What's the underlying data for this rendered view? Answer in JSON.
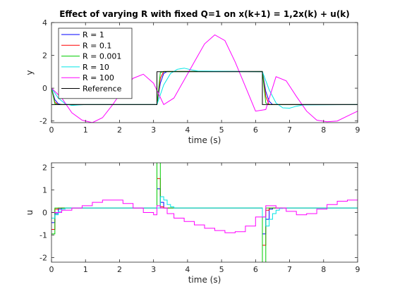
{
  "chart_data": [
    {
      "type": "line",
      "title": "Effect of varying R with fixed Q=1 on x(k+1) = 1,2x(k) + u(k)",
      "xlabel": "time (s)",
      "ylabel": "y",
      "xlim": [
        0,
        9
      ],
      "ylim": [
        -2.1,
        4
      ],
      "xticks": [
        "0",
        "1",
        "2",
        "3",
        "4",
        "5",
        "6",
        "7",
        "8",
        "9"
      ],
      "yticks": [
        "-2",
        "0",
        "2",
        "4"
      ],
      "legend_position": "top-left",
      "series": [
        {
          "name": "R = 1",
          "color": "#0000ff",
          "x": [
            0,
            0.1,
            0.2,
            0.3,
            3.1,
            3.2,
            3.3,
            3.4,
            6.2,
            6.3,
            6.4,
            6.5,
            9
          ],
          "y": [
            0,
            -0.7,
            -0.95,
            -1,
            -1,
            0.3,
            0.9,
            1.02,
            1.02,
            -0.2,
            -0.8,
            -1,
            -1
          ]
        },
        {
          "name": "R = 0.1",
          "color": "#ff0000",
          "x": [
            0,
            0.1,
            0.2,
            3.1,
            3.2,
            3.3,
            6.2,
            6.3,
            6.4,
            9
          ],
          "y": [
            0,
            -0.85,
            -1,
            -1,
            0.6,
            1.02,
            1.02,
            -0.5,
            -1,
            -1
          ]
        },
        {
          "name": "R = 0.001",
          "color": "#00cc00",
          "x": [
            0,
            0.1,
            0.2,
            3.1,
            3.2,
            3.3,
            6.2,
            6.3,
            6.4,
            9
          ],
          "y": [
            0,
            -0.95,
            -1,
            -1,
            0.95,
            1.02,
            1.02,
            -0.9,
            -1,
            -1
          ]
        },
        {
          "name": "R = 10",
          "color": "#00e5e5",
          "x": [
            0,
            0.2,
            0.4,
            0.6,
            0.8,
            1.0,
            3.1,
            3.3,
            3.5,
            3.7,
            3.9,
            4.1,
            4.3,
            6.2,
            6.4,
            6.6,
            6.8,
            7.0,
            7.2,
            7.4,
            9
          ],
          "y": [
            0,
            -0.6,
            -0.95,
            -1.05,
            -1.02,
            -1,
            -1,
            0.2,
            0.9,
            1.15,
            1.22,
            1.12,
            1.05,
            1.0,
            -0.1,
            -0.9,
            -1.2,
            -1.22,
            -1.1,
            -1.02,
            -1
          ]
        },
        {
          "name": "R = 100",
          "color": "#ff00ff",
          "x": [
            0,
            0.3,
            0.6,
            0.9,
            1.2,
            1.5,
            1.8,
            2.1,
            2.4,
            2.7,
            3.0,
            3.3,
            3.6,
            3.9,
            4.2,
            4.5,
            4.8,
            5.1,
            5.4,
            5.7,
            6.0,
            6.3,
            6.6,
            6.9,
            7.2,
            7.5,
            7.8,
            8.1,
            8.4,
            8.7,
            9.0
          ],
          "y": [
            0,
            -0.6,
            -1.5,
            -1.95,
            -2.1,
            -1.8,
            -1.0,
            -0.1,
            0.6,
            0.85,
            0.3,
            -1.0,
            -0.6,
            0.5,
            1.6,
            2.7,
            3.25,
            2.9,
            1.6,
            0.1,
            -1.4,
            -1.3,
            0.7,
            0.45,
            -0.5,
            -1.4,
            -1.95,
            -2.05,
            -2.0,
            -1.7,
            -1.4
          ]
        },
        {
          "name": "Reference",
          "color": "#000000",
          "x": [
            0,
            3.1,
            3.1,
            6.2,
            6.2,
            9
          ],
          "y": [
            -1,
            -1,
            1,
            1,
            -1,
            -1
          ]
        }
      ]
    },
    {
      "type": "line",
      "title": "",
      "xlabel": "time (s)",
      "ylabel": "u",
      "xlim": [
        0,
        9
      ],
      "ylim": [
        -2.2,
        2.2
      ],
      "xticks": [
        "0",
        "1",
        "2",
        "3",
        "4",
        "5",
        "6",
        "7",
        "8",
        "9"
      ],
      "yticks": [
        "-2",
        "-1",
        "0",
        "1",
        "2"
      ],
      "step": true,
      "series": [
        {
          "name": "R = 1",
          "color": "#0000ff",
          "x": [
            0,
            0.1,
            0.2,
            0.3,
            3.1,
            3.2,
            3.3,
            3.4,
            6.2,
            6.3,
            6.4,
            6.5,
            9
          ],
          "y": [
            -0.45,
            -0.05,
            0.15,
            0.2,
            1.05,
            0.45,
            0.2,
            0.2,
            -0.95,
            -0.3,
            0.15,
            0.2,
            0.2
          ]
        },
        {
          "name": "R = 0.1",
          "color": "#ff0000",
          "x": [
            0,
            0.1,
            0.2,
            3.1,
            3.2,
            3.3,
            6.2,
            6.3,
            6.4,
            9
          ],
          "y": [
            -0.75,
            0.15,
            0.2,
            1.5,
            0.25,
            0.2,
            -1.45,
            0.1,
            0.2,
            0.2
          ]
        },
        {
          "name": "R = 0.001",
          "color": "#00cc00",
          "x": [
            0,
            0.1,
            0.2,
            3.1,
            3.2,
            3.3,
            6.2,
            6.3,
            6.4,
            9
          ],
          "y": [
            -0.95,
            0.2,
            0.2,
            2.3,
            0.2,
            0.2,
            -2.3,
            0.2,
            0.2,
            0.2
          ]
        },
        {
          "name": "R = 10",
          "color": "#00e5e5",
          "x": [
            0,
            0.1,
            0.2,
            0.3,
            0.4,
            3.1,
            3.2,
            3.3,
            3.4,
            3.5,
            3.6,
            3.7,
            6.2,
            6.3,
            6.4,
            6.5,
            6.6,
            6.7,
            6.8,
            9
          ],
          "y": [
            -0.25,
            -0.1,
            0.05,
            0.15,
            0.2,
            0.2,
            0.7,
            0.55,
            0.35,
            0.25,
            0.2,
            0.2,
            -0.2,
            -0.6,
            -0.3,
            -0.05,
            0.1,
            0.18,
            0.2,
            0.2
          ]
        },
        {
          "name": "R = 100",
          "color": "#ff00ff",
          "x": [
            0,
            0.3,
            0.6,
            0.9,
            1.2,
            1.5,
            1.8,
            2.1,
            2.4,
            2.7,
            3.0,
            3.1,
            3.2,
            3.4,
            3.6,
            3.9,
            4.2,
            4.5,
            4.8,
            5.1,
            5.4,
            5.7,
            6.0,
            6.3,
            6.6,
            6.9,
            7.2,
            7.5,
            7.8,
            8.1,
            8.4,
            8.7,
            9.0
          ],
          "y": [
            0,
            0.1,
            0.2,
            0.3,
            0.45,
            0.55,
            0.55,
            0.4,
            0.2,
            0.0,
            -0.1,
            0.3,
            0.2,
            -0.05,
            -0.25,
            -0.4,
            -0.55,
            -0.7,
            -0.8,
            -0.9,
            -0.85,
            -0.6,
            -0.2,
            0.3,
            0.2,
            0.05,
            -0.1,
            -0.05,
            0.15,
            0.35,
            0.5,
            0.55,
            0.55
          ]
        }
      ]
    }
  ]
}
